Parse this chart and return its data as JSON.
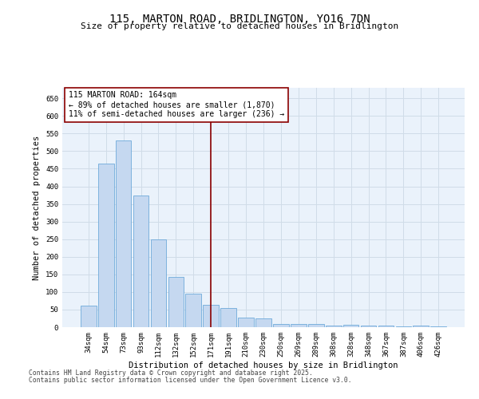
{
  "title1": "115, MARTON ROAD, BRIDLINGTON, YO16 7DN",
  "title2": "Size of property relative to detached houses in Bridlington",
  "xlabel": "Distribution of detached houses by size in Bridlington",
  "ylabel": "Number of detached properties",
  "categories": [
    "34sqm",
    "54sqm",
    "73sqm",
    "93sqm",
    "112sqm",
    "132sqm",
    "152sqm",
    "171sqm",
    "191sqm",
    "210sqm",
    "230sqm",
    "250sqm",
    "269sqm",
    "289sqm",
    "308sqm",
    "328sqm",
    "348sqm",
    "367sqm",
    "387sqm",
    "406sqm",
    "426sqm"
  ],
  "values": [
    62,
    465,
    530,
    373,
    250,
    142,
    95,
    63,
    55,
    27,
    26,
    8,
    10,
    10,
    5,
    7,
    4,
    5,
    3,
    4,
    2
  ],
  "bar_color": "#c5d8f0",
  "bar_edge_color": "#5a9fd4",
  "vline_x": 7,
  "vline_color": "#8b0000",
  "annotation_text": "115 MARTON ROAD: 164sqm\n← 89% of detached houses are smaller (1,870)\n11% of semi-detached houses are larger (236) →",
  "annotation_box_color": "white",
  "annotation_box_edge_color": "#8b0000",
  "ylim": [
    0,
    680
  ],
  "yticks": [
    0,
    50,
    100,
    150,
    200,
    250,
    300,
    350,
    400,
    450,
    500,
    550,
    600,
    650
  ],
  "grid_color": "#d0dce8",
  "background_color": "#eaf2fb",
  "footer1": "Contains HM Land Registry data © Crown copyright and database right 2025.",
  "footer2": "Contains public sector information licensed under the Open Government Licence v3.0.",
  "title1_fontsize": 10,
  "title2_fontsize": 8,
  "axis_fontsize": 7.5,
  "tick_fontsize": 6.5,
  "annotation_fontsize": 7,
  "footer_fontsize": 5.8
}
